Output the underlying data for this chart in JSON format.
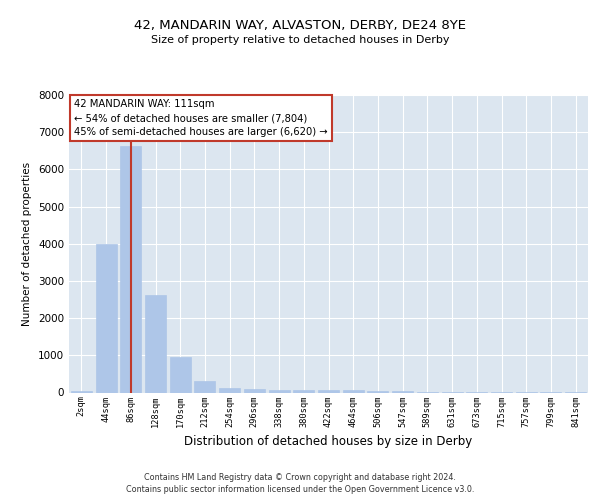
{
  "title1": "42, MANDARIN WAY, ALVASTON, DERBY, DE24 8YE",
  "title2": "Size of property relative to detached houses in Derby",
  "xlabel": "Distribution of detached houses by size in Derby",
  "ylabel": "Number of detached properties",
  "categories": [
    "2sqm",
    "44sqm",
    "86sqm",
    "128sqm",
    "170sqm",
    "212sqm",
    "254sqm",
    "296sqm",
    "338sqm",
    "380sqm",
    "422sqm",
    "464sqm",
    "506sqm",
    "547sqm",
    "589sqm",
    "631sqm",
    "673sqm",
    "715sqm",
    "757sqm",
    "799sqm",
    "841sqm"
  ],
  "values": [
    50,
    4000,
    6620,
    2620,
    950,
    300,
    130,
    100,
    80,
    70,
    60,
    60,
    50,
    30,
    20,
    15,
    10,
    8,
    5,
    3,
    2
  ],
  "bar_color": "#aec6e8",
  "bar_edgecolor": "#aec6e8",
  "vline_x": 2,
  "vline_color": "#c0392b",
  "annotation_text": "42 MANDARIN WAY: 111sqm\n← 54% of detached houses are smaller (7,804)\n45% of semi-detached houses are larger (6,620) →",
  "annotation_box_color": "#ffffff",
  "annotation_box_edgecolor": "#c0392b",
  "ylim": [
    0,
    8000
  ],
  "background_color": "#dce6f0",
  "footer1": "Contains HM Land Registry data © Crown copyright and database right 2024.",
  "footer2": "Contains public sector information licensed under the Open Government Licence v3.0."
}
